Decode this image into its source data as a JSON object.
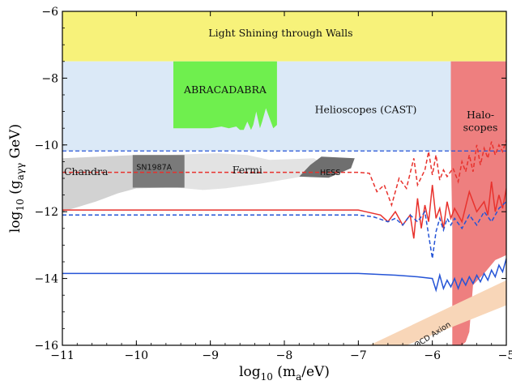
{
  "chart_data": {
    "type": "area",
    "title": "",
    "xlabel_parts": {
      "pre": "log",
      "sub": "10",
      "mid": " (m",
      "sub2": "a",
      "post": "/eV)"
    },
    "ylabel_parts": {
      "pre": "log",
      "sub": "10",
      "mid": " (g",
      "sub2": "aγγ",
      "post": " GeV)"
    },
    "xlim": [
      -11,
      -5
    ],
    "ylim": [
      -16,
      -6
    ],
    "x_ticks": [
      -11,
      -10,
      -9,
      -8,
      -7,
      -6,
      -5
    ],
    "x_tick_labels": [
      "−11",
      "−10",
      "−9",
      "−8",
      "−7",
      "−6",
      "−5"
    ],
    "y_ticks": [
      -16,
      -14,
      -12,
      -10,
      -8,
      -6
    ],
    "y_tick_labels": [
      "−16",
      "−14",
      "−12",
      "−10",
      "−8",
      "−6"
    ],
    "colors": {
      "lsw": "#f7f27a",
      "helioscopes": "#dbe9f7",
      "abracadabra": "#6fef4e",
      "haloscopes": "#ee7f7f",
      "chandra": "#d2d2d2",
      "fermi": "#e3e3e3",
      "sn1987a": "#7a7a7a",
      "hess": "#6f6f6f",
      "qcd": "#f8d6b8",
      "red_curve": "#e8322d",
      "blue_curve": "#2554d6"
    },
    "regions": [
      {
        "name": "Light Shining through Walls",
        "label_at": [
          -8.05,
          -6.75
        ],
        "points": [
          [
            -11,
            -7.5
          ],
          [
            -5,
            -7.5
          ],
          [
            -5,
            -6
          ],
          [
            -11,
            -6
          ]
        ]
      },
      {
        "name": "Helioscopes (CAST)",
        "label_at": [
          -6.9,
          -9.05
        ],
        "points": [
          [
            -11,
            -10.18
          ],
          [
            -5,
            -10.18
          ],
          [
            -5,
            -7.5
          ],
          [
            -11,
            -7.5
          ]
        ]
      },
      {
        "name": "ABRACADABRA",
        "label_at": [
          -8.8,
          -8.45
        ],
        "points": [
          [
            -9.5,
            -7.5
          ],
          [
            -8.1,
            -7.5
          ],
          [
            -8.1,
            -9.4
          ],
          [
            -8.15,
            -9.5
          ],
          [
            -8.2,
            -9.2
          ],
          [
            -8.25,
            -8.9
          ],
          [
            -8.3,
            -9.3
          ],
          [
            -8.33,
            -9.5
          ],
          [
            -8.38,
            -9.0
          ],
          [
            -8.42,
            -9.4
          ],
          [
            -8.45,
            -9.55
          ],
          [
            -8.5,
            -9.3
          ],
          [
            -8.55,
            -9.55
          ],
          [
            -8.6,
            -9.55
          ],
          [
            -8.65,
            -9.45
          ],
          [
            -8.75,
            -9.5
          ],
          [
            -8.85,
            -9.45
          ],
          [
            -9.0,
            -9.5
          ],
          [
            -9.5,
            -9.5
          ]
        ]
      },
      {
        "name": "Halo-\nscopes",
        "label_at": [
          -5.35,
          -9.2
        ],
        "points": [
          [
            -5.75,
            -7.5
          ],
          [
            -5.0,
            -7.5
          ],
          [
            -5.0,
            -13.3
          ],
          [
            -5.15,
            -13.45
          ],
          [
            -5.3,
            -13.85
          ],
          [
            -5.45,
            -14.2
          ],
          [
            -5.5,
            -15.6
          ],
          [
            -5.55,
            -15.9
          ],
          [
            -5.6,
            -16
          ],
          [
            -5.73,
            -16
          ],
          [
            -5.73,
            -12.5
          ],
          [
            -5.75,
            -10.1
          ]
        ]
      },
      {
        "name": "Chandra",
        "label_at": [
          -10.68,
          -10.9
        ],
        "points": [
          [
            -11,
            -12.0
          ],
          [
            -10.55,
            -11.7
          ],
          [
            -10.25,
            -11.45
          ],
          [
            -10.0,
            -11.3
          ],
          [
            -9.6,
            -11.28
          ],
          [
            -9.6,
            -10.3
          ],
          [
            -10.0,
            -10.3
          ],
          [
            -11,
            -10.4
          ]
        ]
      },
      {
        "name": "Fermi",
        "label_at": [
          -8.5,
          -10.85
        ],
        "points": [
          [
            -9.6,
            -11.25
          ],
          [
            -9.1,
            -11.35
          ],
          [
            -8.8,
            -11.3
          ],
          [
            -8.3,
            -11.15
          ],
          [
            -7.9,
            -11.0
          ],
          [
            -7.65,
            -10.9
          ],
          [
            -7.45,
            -10.6
          ],
          [
            -7.6,
            -10.4
          ],
          [
            -8.2,
            -10.45
          ],
          [
            -8.5,
            -10.3
          ],
          [
            -8.9,
            -10.25
          ],
          [
            -9.6,
            -10.3
          ]
        ]
      },
      {
        "name": "SN1987A",
        "label_at": [
          -9.76,
          -10.75
        ],
        "points": [
          [
            -10.05,
            -10.3
          ],
          [
            -9.35,
            -10.3
          ],
          [
            -9.35,
            -11.28
          ],
          [
            -10.05,
            -11.28
          ]
        ]
      },
      {
        "name": "HESS",
        "label_at": [
          -7.38,
          -10.9
        ],
        "points": [
          [
            -7.8,
            -10.95
          ],
          [
            -7.4,
            -10.98
          ],
          [
            -7.1,
            -10.7
          ],
          [
            -7.05,
            -10.4
          ],
          [
            -7.5,
            -10.35
          ],
          [
            -7.65,
            -10.6
          ]
        ]
      },
      {
        "name": "QCD Axion",
        "label_at": [
          -5.98,
          -15.75
        ],
        "points": [
          [
            -6.85,
            -16
          ],
          [
            -6.35,
            -16
          ],
          [
            -5.0,
            -14.8
          ],
          [
            -5.0,
            -14.05
          ]
        ]
      }
    ],
    "series": [
      {
        "style": "red-dashed",
        "x": [
          -11,
          -7.0,
          -6.85,
          -6.75,
          -6.65,
          -6.55,
          -6.45,
          -6.35,
          -6.25,
          -6.2,
          -6.1,
          -6.05,
          -6.0,
          -5.95,
          -5.9,
          -5.85,
          -5.8,
          -5.72,
          -5.65,
          -5.6,
          -5.55,
          -5.5,
          -5.45,
          -5.4,
          -5.35,
          -5.3,
          -5.25,
          -5.2,
          -5.15,
          -5.1,
          -5.05,
          -5.0
        ],
        "y": [
          -10.82,
          -10.82,
          -10.85,
          -11.4,
          -11.2,
          -11.8,
          -11.0,
          -11.3,
          -10.4,
          -11.2,
          -10.75,
          -10.2,
          -10.9,
          -10.3,
          -11.05,
          -10.75,
          -10.95,
          -10.7,
          -11.1,
          -10.5,
          -10.8,
          -10.3,
          -10.8,
          -10.0,
          -10.6,
          -10.1,
          -10.4,
          -9.9,
          -10.3,
          -10.0,
          -10.2,
          -9.85
        ]
      },
      {
        "style": "red-solid",
        "x": [
          -11,
          -7.0,
          -6.9,
          -6.7,
          -6.6,
          -6.5,
          -6.4,
          -6.3,
          -6.25,
          -6.2,
          -6.15,
          -6.1,
          -6.05,
          -6.0,
          -5.95,
          -5.9,
          -5.85,
          -5.8,
          -5.75,
          -5.7,
          -5.6,
          -5.5,
          -5.4,
          -5.3,
          -5.25,
          -5.2,
          -5.15,
          -5.1,
          -5.05,
          -5.0
        ],
        "y": [
          -11.95,
          -11.95,
          -12.0,
          -12.1,
          -12.3,
          -12.0,
          -12.4,
          -12.1,
          -12.8,
          -11.6,
          -12.5,
          -11.8,
          -12.3,
          -11.2,
          -12.2,
          -11.9,
          -12.5,
          -11.7,
          -12.2,
          -11.9,
          -12.3,
          -11.4,
          -12.0,
          -11.7,
          -12.1,
          -11.1,
          -12.0,
          -11.5,
          -11.9,
          -11.3
        ]
      },
      {
        "style": "blue-dashed",
        "x": [
          -11,
          -7.0,
          -6.8,
          -6.6,
          -6.5,
          -6.4,
          -6.3,
          -6.2,
          -6.1,
          -6.0,
          -5.95,
          -5.9,
          -5.85,
          -5.8,
          -5.75,
          -5.7,
          -5.6,
          -5.5,
          -5.4,
          -5.3,
          -5.2,
          -5.1,
          -5.0
        ],
        "y": [
          -12.1,
          -12.1,
          -12.15,
          -12.3,
          -12.2,
          -12.4,
          -12.1,
          -12.3,
          -12.0,
          -13.4,
          -12.6,
          -12.2,
          -12.55,
          -12.2,
          -12.4,
          -12.2,
          -12.5,
          -12.1,
          -12.4,
          -12.0,
          -12.3,
          -11.9,
          -11.7
        ]
      },
      {
        "style": "blue-solid",
        "x": [
          -11,
          -7.0,
          -6.5,
          -6.2,
          -6.0,
          -5.95,
          -5.9,
          -5.85,
          -5.8,
          -5.75,
          -5.7,
          -5.65,
          -5.6,
          -5.55,
          -5.5,
          -5.45,
          -5.4,
          -5.35,
          -5.3,
          -5.25,
          -5.2,
          -5.15,
          -5.1,
          -5.05,
          -5.0
        ],
        "y": [
          -13.85,
          -13.85,
          -13.9,
          -13.95,
          -14.0,
          -14.35,
          -13.9,
          -14.3,
          -14.05,
          -14.25,
          -14.0,
          -14.3,
          -14.0,
          -14.2,
          -13.95,
          -14.15,
          -13.9,
          -14.1,
          -13.85,
          -14.05,
          -13.75,
          -13.95,
          -13.6,
          -13.8,
          -13.4
        ]
      }
    ],
    "hline": {
      "y": -10.18,
      "style": "blue-dashed"
    },
    "grid": false,
    "legend": "none"
  }
}
